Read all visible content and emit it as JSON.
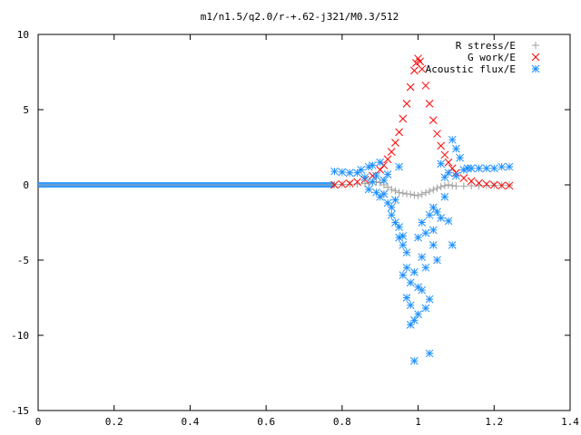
{
  "chart_data": {
    "type": "scatter",
    "title": "m1/n1.5/q2.0/r-+.62-j321/M0.3/512",
    "xlabel": "",
    "ylabel": "",
    "xlim": [
      0,
      1.4
    ],
    "ylim": [
      -15,
      10
    ],
    "x_ticks": [
      0,
      0.2,
      0.4,
      0.6,
      0.8,
      1,
      1.2,
      1.4
    ],
    "x_tick_labels": [
      "0",
      "0.2",
      "0.4",
      "0.6",
      "0.8",
      "1",
      "1.2",
      "1.4"
    ],
    "y_ticks": [
      -15,
      -10,
      -5,
      0,
      5,
      10
    ],
    "y_tick_labels": [
      "-15",
      "-10",
      "-5",
      "0",
      "5",
      "10"
    ],
    "grid": false,
    "legend_position": "top-right",
    "series": [
      {
        "name": "R stress/E",
        "marker": "plus",
        "color": "#a0a0a0",
        "points": [
          [
            0.78,
            0.02
          ],
          [
            0.8,
            0.03
          ],
          [
            0.82,
            0.04
          ],
          [
            0.84,
            0.06
          ],
          [
            0.86,
            0.08
          ],
          [
            0.87,
            0.12
          ],
          [
            0.88,
            0.18
          ],
          [
            0.89,
            0.2
          ],
          [
            0.9,
            0.15
          ],
          [
            0.91,
            0.0
          ],
          [
            0.92,
            -0.15
          ],
          [
            0.93,
            -0.3
          ],
          [
            0.94,
            -0.4
          ],
          [
            0.95,
            -0.5
          ],
          [
            0.96,
            -0.55
          ],
          [
            0.97,
            -0.6
          ],
          [
            0.98,
            -0.62
          ],
          [
            0.99,
            -0.68
          ],
          [
            1.0,
            -0.72
          ],
          [
            1.01,
            -0.62
          ],
          [
            1.02,
            -0.52
          ],
          [
            1.03,
            -0.42
          ],
          [
            1.04,
            -0.32
          ],
          [
            1.05,
            -0.22
          ],
          [
            1.06,
            -0.12
          ],
          [
            1.07,
            -0.05
          ],
          [
            1.08,
            0.0
          ],
          [
            1.09,
            -0.05
          ],
          [
            1.1,
            -0.08
          ],
          [
            1.12,
            -0.08
          ],
          [
            1.14,
            -0.06
          ],
          [
            1.16,
            -0.05
          ],
          [
            1.18,
            -0.04
          ],
          [
            1.2,
            -0.03
          ],
          [
            1.22,
            -0.02
          ],
          [
            1.24,
            -0.02
          ]
        ]
      },
      {
        "name": "G work/E",
        "marker": "cross",
        "color": "#ff0000",
        "points": [
          [
            0.78,
            0.0
          ],
          [
            0.8,
            0.05
          ],
          [
            0.82,
            0.1
          ],
          [
            0.84,
            0.2
          ],
          [
            0.86,
            0.35
          ],
          [
            0.88,
            0.6
          ],
          [
            0.9,
            1.0
          ],
          [
            0.91,
            1.3
          ],
          [
            0.92,
            1.7
          ],
          [
            0.93,
            2.2
          ],
          [
            0.94,
            2.8
          ],
          [
            0.95,
            3.5
          ],
          [
            0.96,
            4.4
          ],
          [
            0.97,
            5.4
          ],
          [
            0.98,
            6.5
          ],
          [
            0.99,
            7.6
          ],
          [
            0.995,
            8.1
          ],
          [
            1.0,
            8.4
          ],
          [
            1.005,
            8.2
          ],
          [
            1.01,
            7.7
          ],
          [
            1.02,
            6.6
          ],
          [
            1.03,
            5.4
          ],
          [
            1.04,
            4.3
          ],
          [
            1.05,
            3.4
          ],
          [
            1.06,
            2.6
          ],
          [
            1.07,
            2.0
          ],
          [
            1.08,
            1.5
          ],
          [
            1.09,
            1.1
          ],
          [
            1.1,
            0.8
          ],
          [
            1.12,
            0.45
          ],
          [
            1.14,
            0.25
          ],
          [
            1.16,
            0.12
          ],
          [
            1.18,
            0.05
          ],
          [
            1.2,
            0.0
          ],
          [
            1.22,
            -0.05
          ],
          [
            1.24,
            -0.05
          ]
        ]
      },
      {
        "name": "Acoustic flux/E",
        "marker": "star",
        "color": "#1e90ff",
        "points": [
          [
            0.78,
            0.9
          ],
          [
            0.8,
            0.85
          ],
          [
            0.82,
            0.8
          ],
          [
            0.84,
            0.8
          ],
          [
            0.85,
            1.0
          ],
          [
            0.86,
            0.5
          ],
          [
            0.87,
            1.2
          ],
          [
            0.87,
            -0.3
          ],
          [
            0.88,
            0.2
          ],
          [
            0.88,
            1.3
          ],
          [
            0.89,
            0.6
          ],
          [
            0.89,
            -0.5
          ],
          [
            0.9,
            1.5
          ],
          [
            0.9,
            -0.8
          ],
          [
            0.91,
            0.3
          ],
          [
            0.91,
            -0.6
          ],
          [
            0.92,
            -1.2
          ],
          [
            0.92,
            0.7
          ],
          [
            0.93,
            -1.5
          ],
          [
            0.93,
            -2.0
          ],
          [
            0.94,
            -2.5
          ],
          [
            0.94,
            -1.0
          ],
          [
            0.95,
            -2.8
          ],
          [
            0.95,
            -3.5
          ],
          [
            0.95,
            1.2
          ],
          [
            0.96,
            -4.0
          ],
          [
            0.96,
            -6.0
          ],
          [
            0.96,
            -3.4
          ],
          [
            0.97,
            -5.5
          ],
          [
            0.97,
            -7.5
          ],
          [
            0.97,
            -4.5
          ],
          [
            0.98,
            -6.5
          ],
          [
            0.98,
            -8.0
          ],
          [
            0.98,
            -9.3
          ],
          [
            0.99,
            -5.8
          ],
          [
            0.99,
            -11.7
          ],
          [
            0.99,
            -9.0
          ],
          [
            1.0,
            -6.8
          ],
          [
            1.0,
            -8.6
          ],
          [
            1.0,
            -3.5
          ],
          [
            1.01,
            -7.0
          ],
          [
            1.01,
            -4.8
          ],
          [
            1.01,
            -2.5
          ],
          [
            1.02,
            -8.2
          ],
          [
            1.02,
            -5.5
          ],
          [
            1.02,
            -3.2
          ],
          [
            1.03,
            -2.0
          ],
          [
            1.03,
            -11.2
          ],
          [
            1.03,
            -7.6
          ],
          [
            1.04,
            -1.5
          ],
          [
            1.04,
            -4.0
          ],
          [
            1.04,
            -3.0
          ],
          [
            1.05,
            -1.8
          ],
          [
            1.05,
            -5.0
          ],
          [
            1.06,
            -2.2
          ],
          [
            1.06,
            1.4
          ],
          [
            1.07,
            -0.8
          ],
          [
            1.07,
            0.5
          ],
          [
            1.08,
            0.8
          ],
          [
            1.08,
            -2.4
          ],
          [
            1.09,
            3.0
          ],
          [
            1.09,
            -4.0
          ],
          [
            1.1,
            0.6
          ],
          [
            1.1,
            2.4
          ],
          [
            1.11,
            1.8
          ],
          [
            1.12,
            1.0
          ],
          [
            1.13,
            1.1
          ],
          [
            1.14,
            1.1
          ],
          [
            1.16,
            1.1
          ],
          [
            1.18,
            1.1
          ],
          [
            1.2,
            1.1
          ],
          [
            1.22,
            1.2
          ],
          [
            1.24,
            1.2
          ]
        ]
      }
    ]
  }
}
